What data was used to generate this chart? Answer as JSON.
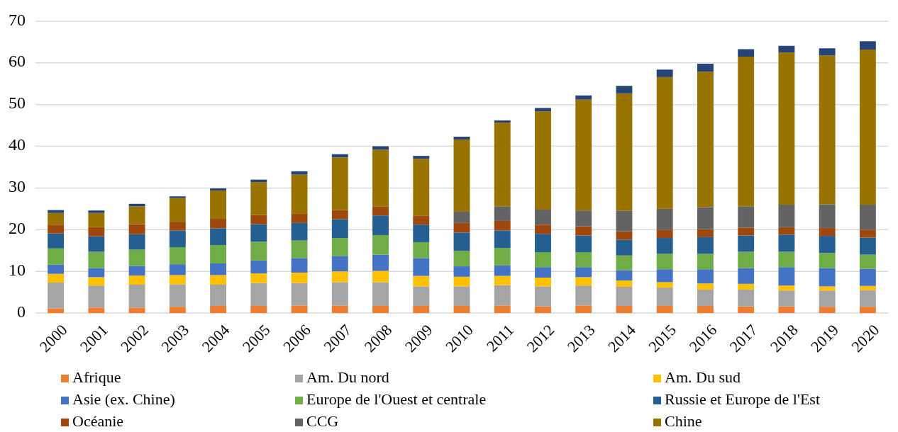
{
  "chart_data": {
    "type": "bar",
    "stacked": true,
    "categories": [
      "2000",
      "2001",
      "2002",
      "2003",
      "2004",
      "2005",
      "2006",
      "2007",
      "2008",
      "2009",
      "2010",
      "2011",
      "2012",
      "2013",
      "2014",
      "2015",
      "2016",
      "2017",
      "2018",
      "2019",
      "2020"
    ],
    "ylim": [
      0,
      70
    ],
    "yticks": [
      0,
      10,
      20,
      30,
      40,
      50,
      60,
      70
    ],
    "grid": "y",
    "legend": "bottom",
    "series": [
      {
        "name": "Afrique",
        "color": "#ed7d31",
        "values": [
          1.1,
          1.3,
          1.3,
          1.5,
          1.7,
          1.7,
          1.8,
          1.8,
          1.7,
          1.7,
          1.7,
          1.8,
          1.6,
          1.8,
          1.7,
          1.7,
          1.7,
          1.6,
          1.6,
          1.5,
          1.5
        ]
      },
      {
        "name": "Am. Du nord",
        "color": "#a5a5a5",
        "values": [
          6.2,
          5.3,
          5.5,
          5.4,
          5.1,
          5.5,
          5.4,
          5.6,
          5.7,
          4.7,
          4.7,
          4.9,
          4.8,
          4.8,
          4.6,
          4.4,
          3.9,
          4.0,
          3.8,
          3.9,
          4.0
        ]
      },
      {
        "name": "Am. Du sud",
        "color": "#ffc000",
        "values": [
          2.1,
          2.0,
          2.2,
          2.2,
          2.3,
          2.3,
          2.5,
          2.6,
          2.7,
          2.5,
          2.3,
          2.2,
          2.1,
          2.0,
          1.5,
          1.3,
          1.5,
          1.4,
          1.2,
          1.0,
          1.0
        ]
      },
      {
        "name": "Asie (ex. Chine)",
        "color": "#4472c4",
        "values": [
          2.2,
          2.2,
          2.3,
          2.6,
          2.8,
          3.1,
          3.5,
          3.7,
          3.9,
          4.3,
          2.5,
          2.5,
          2.5,
          2.4,
          2.5,
          3.1,
          3.4,
          3.8,
          4.4,
          4.4,
          4.1
        ]
      },
      {
        "name": "Europe de l'Ouest et centrale",
        "color": "#70ad47",
        "values": [
          3.9,
          3.9,
          3.9,
          4.1,
          4.4,
          4.5,
          4.2,
          4.3,
          4.7,
          3.8,
          3.7,
          4.2,
          3.6,
          3.6,
          3.5,
          3.7,
          3.7,
          3.9,
          3.7,
          3.6,
          3.4
        ]
      },
      {
        "name": "Russie et Europe de l'Est",
        "color": "#255e91",
        "values": [
          3.6,
          3.7,
          3.7,
          4.0,
          4.0,
          4.2,
          4.2,
          4.5,
          4.7,
          4.2,
          4.4,
          4.2,
          4.4,
          4.0,
          3.8,
          3.8,
          4.0,
          3.9,
          4.1,
          4.1,
          4.1
        ]
      },
      {
        "name": "Océanie",
        "color": "#9e480e",
        "values": [
          2.1,
          2.2,
          2.4,
          2.1,
          2.3,
          2.2,
          2.2,
          2.2,
          2.2,
          2.2,
          2.3,
          2.3,
          2.2,
          2.2,
          2.0,
          1.9,
          1.9,
          1.9,
          1.8,
          1.9,
          1.9
        ]
      },
      {
        "name": "CCG",
        "color": "#636363",
        "values": [
          0,
          0,
          0,
          0,
          0,
          0,
          0,
          0,
          0,
          0,
          2.7,
          3.5,
          3.6,
          3.8,
          4.9,
          5.1,
          5.3,
          5.1,
          5.4,
          5.7,
          6.0
        ]
      },
      {
        "name": "Chine",
        "color": "#997300",
        "values": [
          2.8,
          3.4,
          4.3,
          5.7,
          6.8,
          7.9,
          9.4,
          12.6,
          13.6,
          13.6,
          17.3,
          20.1,
          23.6,
          26.6,
          28.2,
          31.6,
          32.5,
          35.9,
          36.5,
          35.7,
          37.2
        ]
      },
      {
        "color": "#264478",
        "values": [
          0.7,
          0.6,
          0.6,
          0.4,
          0.5,
          0.6,
          0.8,
          0.8,
          0.8,
          0.7,
          0.7,
          0.5,
          0.8,
          1.0,
          1.8,
          1.8,
          1.9,
          1.8,
          1.6,
          1.7,
          2.0
        ]
      }
    ]
  }
}
